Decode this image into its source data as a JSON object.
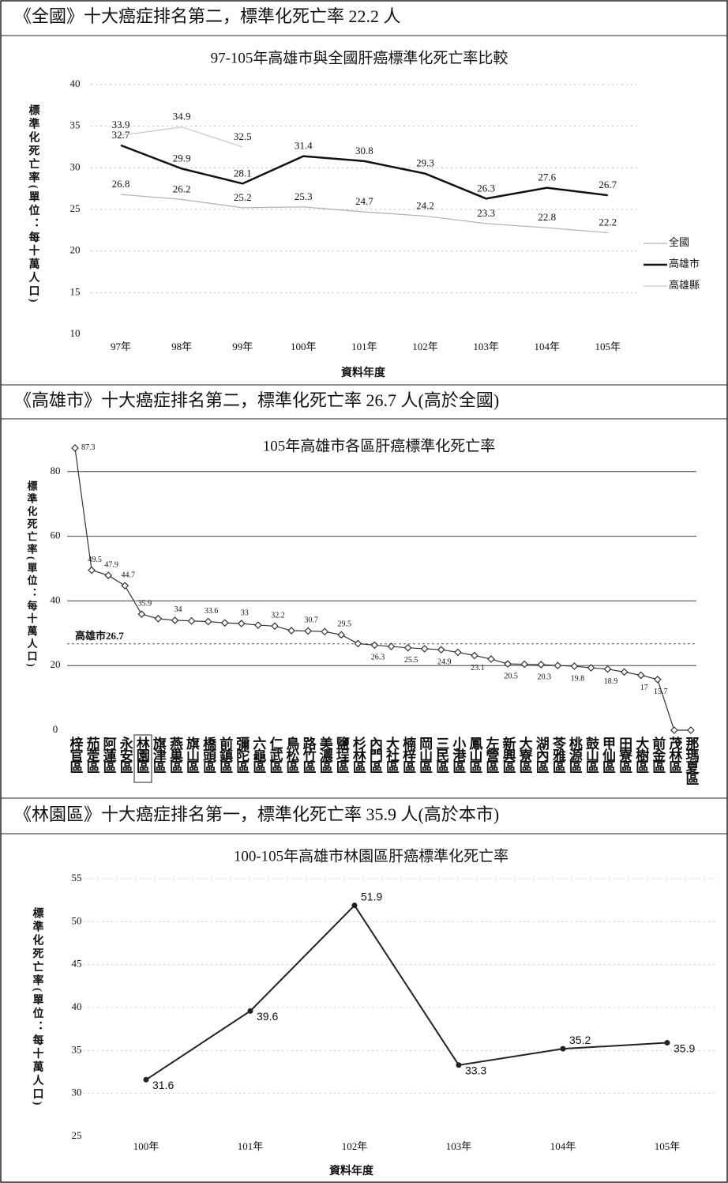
{
  "headings": [
    "《全國》十大癌症排名第二，標準化死亡率 22.2 人",
    "《高雄市》十大癌症排名第二，標準化死亡率 26.7 人(高於全國)",
    "《林園區》十大癌症排名第一，標準化死亡率 35.9 人(高於本市)"
  ],
  "chart_data": [
    {
      "type": "line",
      "title": "97-105年高雄市與全國肝癌標準化死亡率比較",
      "y_label": "標準化死亡率(單位：每十萬人口)",
      "x_label": "資料年度",
      "categories": [
        "97年",
        "98年",
        "99年",
        "100年",
        "101年",
        "102年",
        "103年",
        "104年",
        "105年"
      ],
      "series": [
        {
          "name": "全國",
          "color": "#b0b0b0",
          "values": [
            26.8,
            26.2,
            25.2,
            25.3,
            24.7,
            24.2,
            23.3,
            22.8,
            22.2
          ]
        },
        {
          "name": "高雄市",
          "color": "#111111",
          "values": [
            32.7,
            29.9,
            28.1,
            31.4,
            30.8,
            29.3,
            26.3,
            27.6,
            26.7
          ]
        },
        {
          "name": "高雄縣",
          "color": "#c8c8c8",
          "values": [
            33.9,
            34.9,
            32.5,
            null,
            null,
            null,
            null,
            null,
            null
          ]
        }
      ],
      "ylim": [
        10,
        40
      ],
      "yticks": [
        10,
        15,
        20,
        25,
        30,
        35,
        40
      ],
      "grid": true,
      "legend": "right"
    },
    {
      "type": "line",
      "title": "105年高雄市各區肝癌標準化死亡率",
      "y_label": "標準化死亡率(單位：每十萬人口)",
      "categories": [
        "梓官區",
        "茄萣區",
        "阿蓮區",
        "永安區",
        "林園區",
        "旗津區",
        "燕巢區",
        "旗山區",
        "橋頭區",
        "前鎮區",
        "彌陀區",
        "六龜區",
        "仁武區",
        "鳥松區",
        "路竹區",
        "美濃區",
        "鹽埕區",
        "杉林區",
        "內門區",
        "大社區",
        "楠梓區",
        "岡山區",
        "三民區",
        "小港區",
        "鳳山區",
        "左營區",
        "新興區",
        "大寮區",
        "湖內區",
        "苓雅區",
        "桃源區",
        "鼓山區",
        "甲仙區",
        "田寮區",
        "大樹區",
        "前金區",
        "茂林區",
        "那瑪夏區"
      ],
      "values": [
        87.3,
        49.5,
        47.9,
        44.7,
        35.9,
        34.5,
        34,
        33.8,
        33.6,
        33.2,
        33,
        32.5,
        32.2,
        30.8,
        30.7,
        30.5,
        29.5,
        26.8,
        26.3,
        25.9,
        25.5,
        25.2,
        24.9,
        24.1,
        23.1,
        22.0,
        20.5,
        20.4,
        20.3,
        20.0,
        19.8,
        19.3,
        18.9,
        18.0,
        17,
        15.7,
        0,
        0
      ],
      "value_labels": [
        "87.3",
        "49.5",
        "47.9",
        "44.7",
        "35.9",
        null,
        "34",
        null,
        "33.6",
        null,
        "33",
        null,
        "32.2",
        null,
        "30.7",
        null,
        "29.5",
        null,
        "26.3",
        null,
        "25.5",
        null,
        "24.9",
        null,
        "23.1",
        null,
        "20.5",
        null,
        "20.3",
        null,
        "19.8",
        null,
        "18.9",
        null,
        "17",
        "15.7",
        "0",
        "0"
      ],
      "color": "#333333",
      "marker": "diamond",
      "reference": {
        "label": "高雄市26.7",
        "value": 26.7
      },
      "ylim": [
        0,
        89
      ],
      "yticks": [
        0,
        20,
        40,
        60,
        80
      ],
      "grid": true
    },
    {
      "type": "line",
      "title": "100-105年高雄市林園區肝癌標準化死亡率",
      "y_label": "標準化死亡率(單位：每十萬人口)",
      "x_label": "資料年度",
      "categories": [
        "100年",
        "101年",
        "102年",
        "103年",
        "104年",
        "105年"
      ],
      "values": [
        31.6,
        39.6,
        51.9,
        33.3,
        35.2,
        35.9
      ],
      "color": "#222222",
      "marker": "dot",
      "ylim": [
        25,
        55
      ],
      "yticks": [
        25,
        30,
        35,
        40,
        45,
        50,
        55
      ],
      "grid": true
    }
  ]
}
